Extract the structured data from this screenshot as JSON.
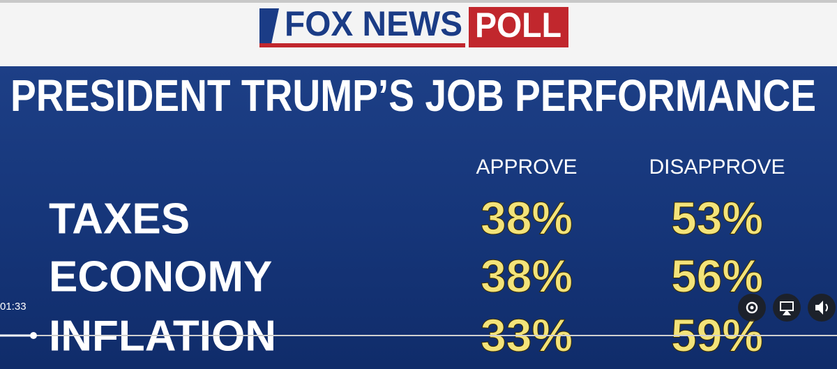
{
  "header": {
    "brand": "FOX NEWS",
    "badge": "POLL"
  },
  "title": "PRESIDENT TRUMP’S JOB PERFORMANCE",
  "table": {
    "columns": [
      "APPROVE",
      "DISAPPROVE"
    ],
    "rows": [
      [
        "TAXES",
        "38%",
        "53%"
      ],
      [
        "ECONOMY",
        "38%",
        "56%"
      ],
      [
        "INFLATION",
        "33%",
        "59%"
      ]
    ]
  },
  "player": {
    "time": "01:33"
  }
}
